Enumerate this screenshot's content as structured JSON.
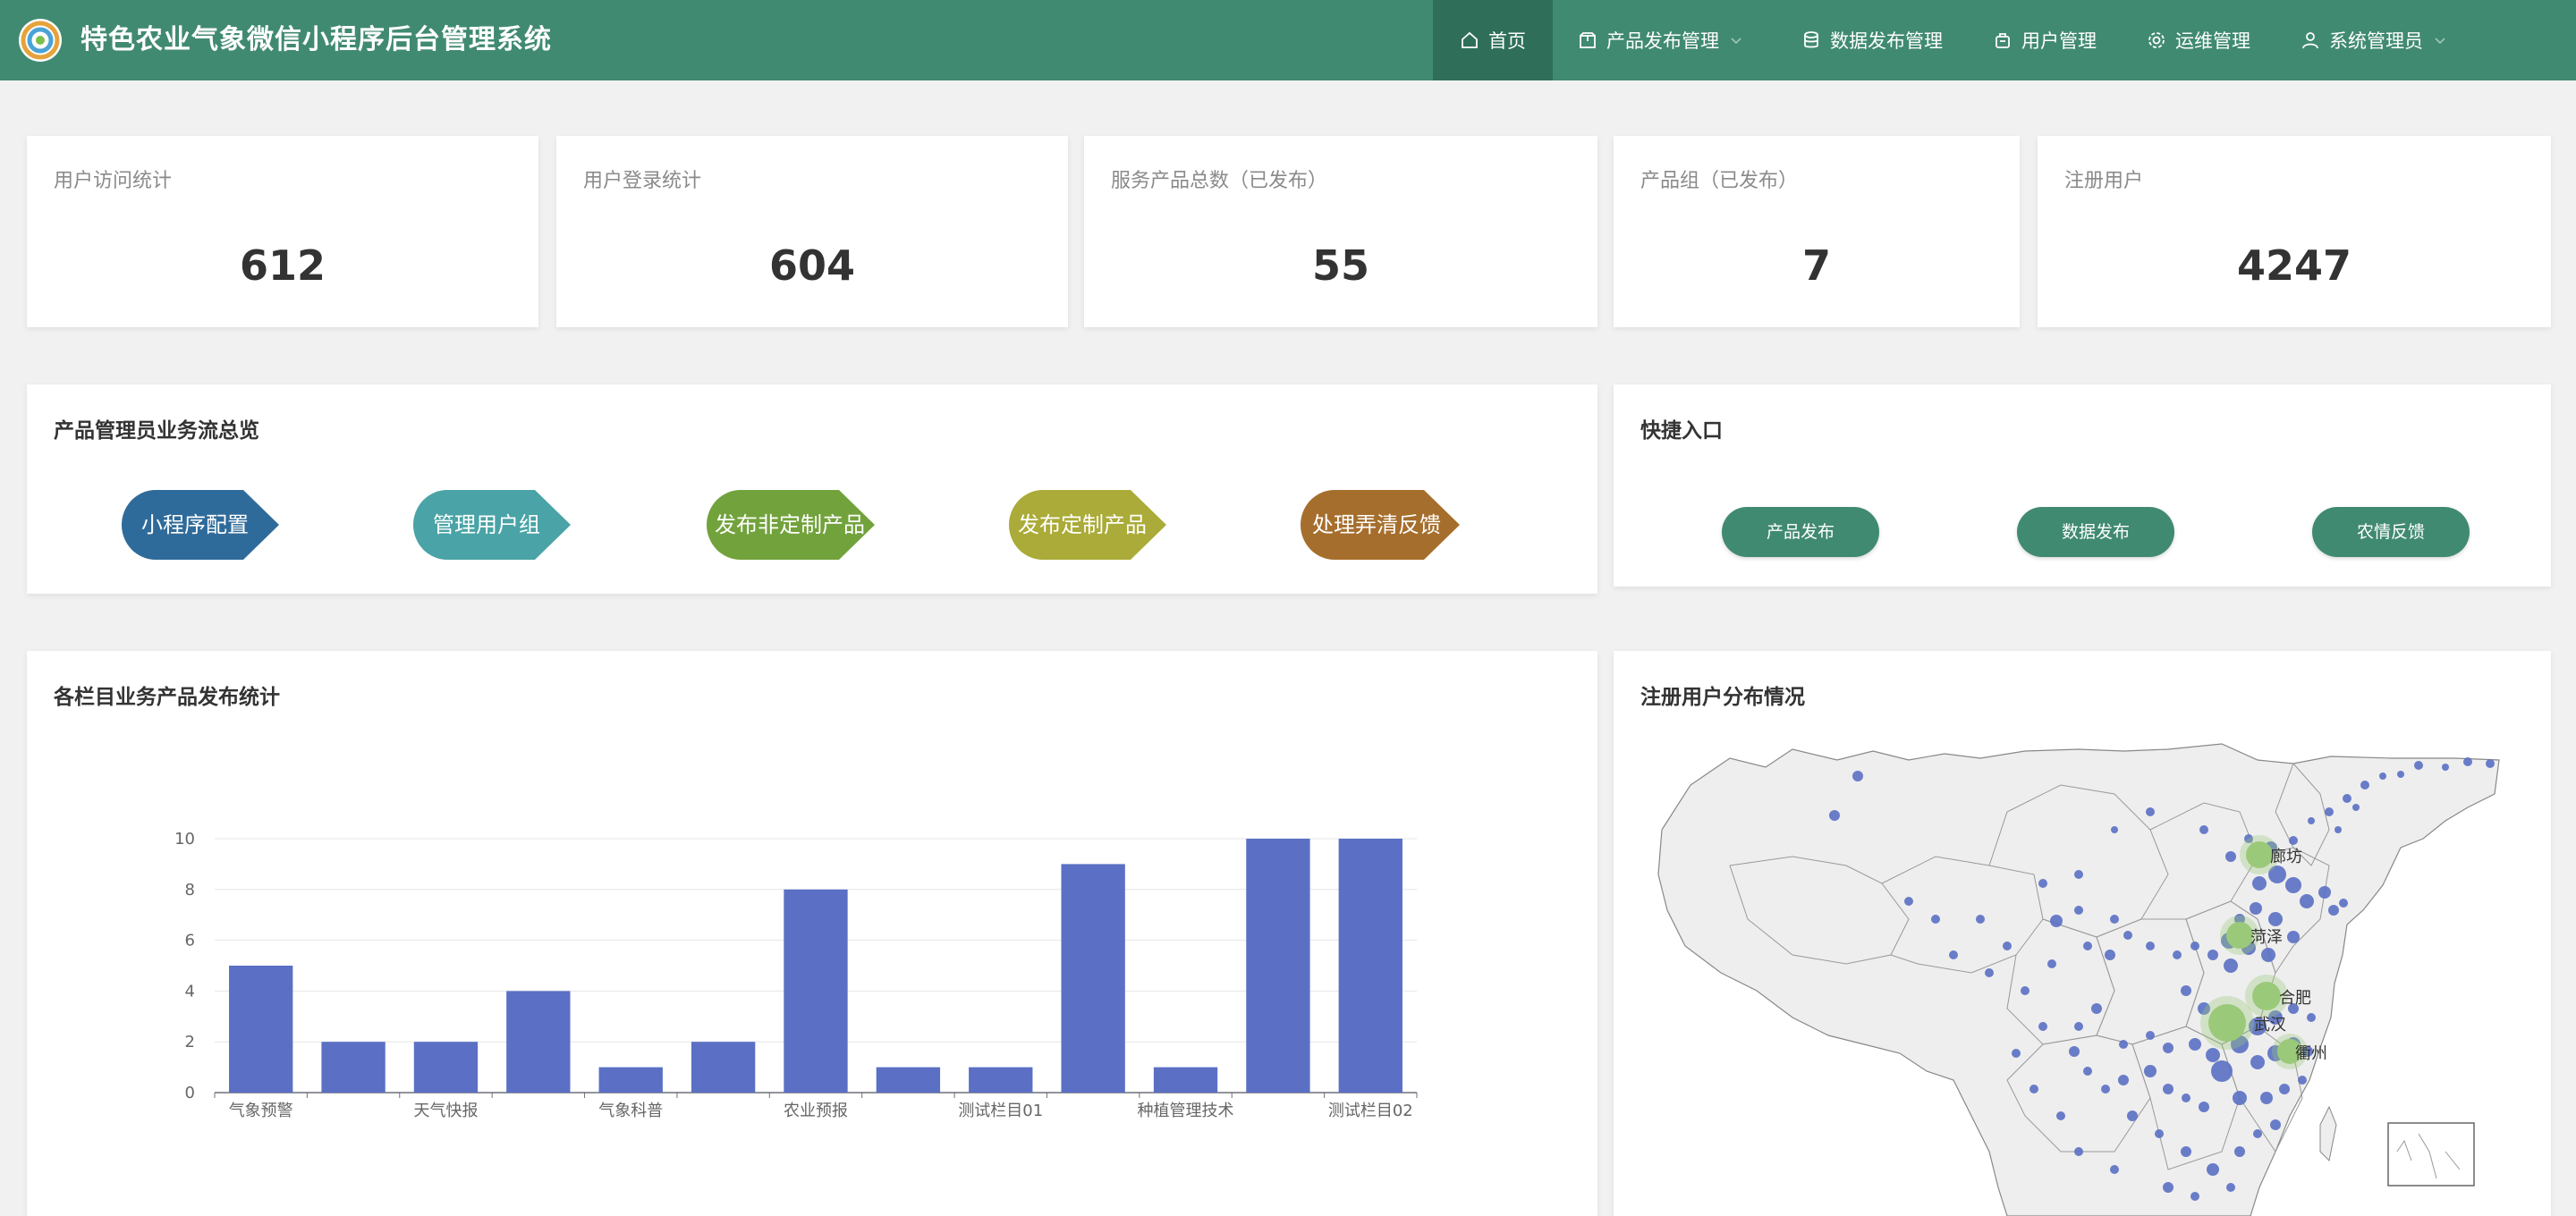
{
  "header": {
    "title": "特色农业气象微信小程序后台管理系统",
    "nav": [
      {
        "label": "首页",
        "icon": "home-icon",
        "active": true
      },
      {
        "label": "产品发布管理",
        "icon": "package-icon",
        "dropdown": true
      },
      {
        "label": "数据发布管理",
        "icon": "database-icon"
      },
      {
        "label": "用户管理",
        "icon": "users-icon"
      },
      {
        "label": "运维管理",
        "icon": "gear-icon"
      },
      {
        "label": "系统管理员",
        "icon": "user-icon",
        "dropdown": true
      }
    ]
  },
  "stats": [
    {
      "label": "用户访问统计",
      "value": "612"
    },
    {
      "label": "用户登录统计",
      "value": "604"
    },
    {
      "label": "服务产品总数（已发布）",
      "value": "55"
    },
    {
      "label": "产品组（已发布）",
      "value": "7"
    },
    {
      "label": "注册用户",
      "value": "4247"
    }
  ],
  "workflow": {
    "title": "产品管理员业务流总览",
    "steps": [
      {
        "label": "小程序配置",
        "color": "#2f6b9a"
      },
      {
        "label": "管理用户组",
        "color": "#4aa3a6"
      },
      {
        "label": "发布非定制产品",
        "color": "#72a23c"
      },
      {
        "label": "发布定制产品",
        "color": "#aaab38"
      },
      {
        "label": "处理弄清反馈",
        "color": "#a66e2c"
      }
    ]
  },
  "quick": {
    "title": "快捷入口",
    "buttons": [
      "产品发布",
      "数据发布",
      "农情反馈"
    ]
  },
  "chart_panel": {
    "title": "各栏目业务产品发布统计"
  },
  "chart_data": {
    "type": "bar",
    "categories": [
      "气象预警",
      "",
      "天气快报",
      "",
      "气象科普",
      "",
      "农业预报",
      "",
      "测试栏目01",
      "",
      "种植管理技术",
      "",
      "测试栏目02"
    ],
    "values": [
      5,
      2,
      2,
      4,
      1,
      2,
      8,
      1,
      1,
      9,
      1,
      10,
      10
    ],
    "ylim": [
      0,
      10
    ],
    "yticks": [
      0,
      2,
      4,
      6,
      8,
      10
    ],
    "color": "#5b70c4",
    "grid": true
  },
  "map_panel": {
    "title": "注册用户分布情况",
    "cities": [
      "廊坊",
      "菏泽",
      "合肥",
      "武汉",
      "衢州"
    ]
  },
  "colors": {
    "brand": "#418a72",
    "brand_dark": "#2f6f5a"
  }
}
